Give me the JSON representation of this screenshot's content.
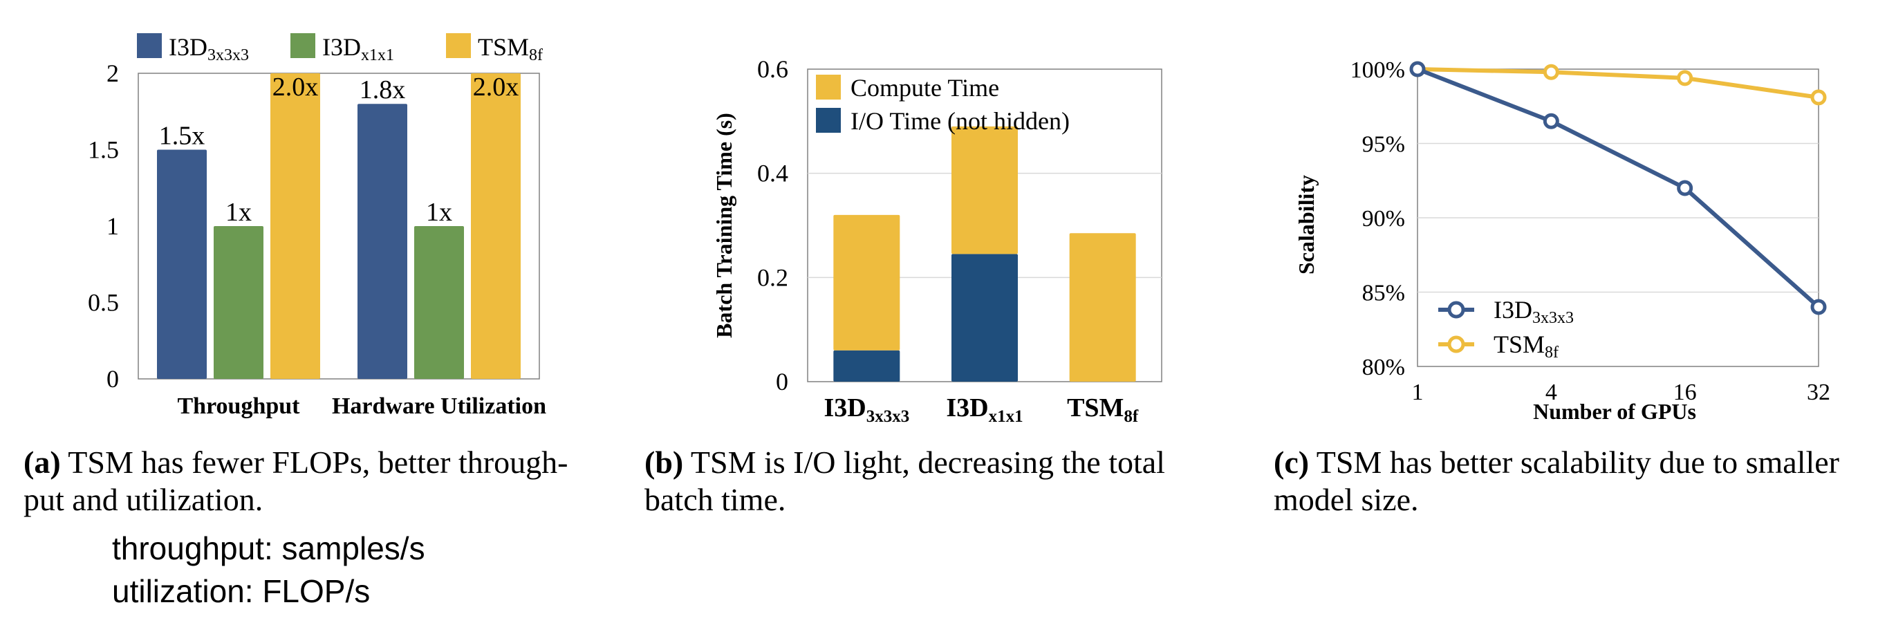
{
  "colors": {
    "blue": "#3b5a8c",
    "green": "#6c9a52",
    "yellow": "#eebc3e",
    "darkblue": "#1f4e7c",
    "grid": "#d9d9d9"
  },
  "chart_data": [
    {
      "type": "bar",
      "categories": [
        "Throughput",
        "Hardware Utilization"
      ],
      "series": [
        {
          "name": "I3D",
          "sub": "3x3x3",
          "values": [
            1.5,
            1.8
          ],
          "labels": [
            "1.5x",
            "1.8x"
          ],
          "color": "#3b5a8c"
        },
        {
          "name": "I3D",
          "sub": "x1x1",
          "values": [
            1.0,
            1.0
          ],
          "labels": [
            "1x",
            "1x"
          ],
          "color": "#6c9a52"
        },
        {
          "name": "TSM",
          "sub": "8f",
          "values": [
            2.0,
            2.0
          ],
          "labels": [
            "2.0x",
            "2.0x"
          ],
          "color": "#eebc3e"
        }
      ],
      "ylim": [
        0,
        2
      ],
      "yticks": [
        "0",
        "0.5",
        "1",
        "1.5",
        "2"
      ],
      "legend_position": "top"
    },
    {
      "type": "bar",
      "stacked": true,
      "ylabel": "Batch Training Time (s)",
      "categories": [
        {
          "name": "I3D",
          "sub": "3x3x3"
        },
        {
          "name": "I3D",
          "sub": "x1x1"
        },
        {
          "name": "TSM",
          "sub": "8f"
        }
      ],
      "series": [
        {
          "name": "I/O Time (not hidden)",
          "values": [
            0.06,
            0.245,
            0.0
          ],
          "color": "#1f4e7c"
        },
        {
          "name": "Compute Time",
          "values": [
            0.26,
            0.245,
            0.285
          ],
          "color": "#eebc3e"
        }
      ],
      "ylim": [
        0,
        0.6
      ],
      "yticks": [
        "0",
        "0.2",
        "0.4",
        "0.6"
      ],
      "legend_position": "top-left"
    },
    {
      "type": "line",
      "xlabel": "Number of GPUs",
      "ylabel": "Scalability",
      "x": [
        "1",
        "4",
        "16",
        "32"
      ],
      "series": [
        {
          "name": "I3D",
          "sub": "3x3x3",
          "values": [
            100,
            96.5,
            92,
            84
          ],
          "color": "#3b5a8c"
        },
        {
          "name": "TSM",
          "sub": "8f",
          "values": [
            100,
            99.8,
            99.4,
            98.1
          ],
          "color": "#eebc3e"
        }
      ],
      "ylim": [
        80,
        100
      ],
      "yticks": [
        "80%",
        "85%",
        "90%",
        "95%",
        "100%"
      ],
      "grid": true,
      "legend_position": "bottom-left"
    }
  ],
  "captions": {
    "a": {
      "label": "(a)",
      "line1": " TSM has fewer FLOPs, better through-",
      "line2": "put and utilization."
    },
    "b": {
      "label": "(b)",
      "line1": " TSM is I/O light, decreasing the total",
      "line2": "batch time."
    },
    "c": {
      "label": "(c)",
      "line1": " TSM has better scalability due to smaller",
      "line2": "model size."
    }
  },
  "notes": {
    "line1": "throughput: samples/s",
    "line2": "utilization: FLOP/s"
  }
}
